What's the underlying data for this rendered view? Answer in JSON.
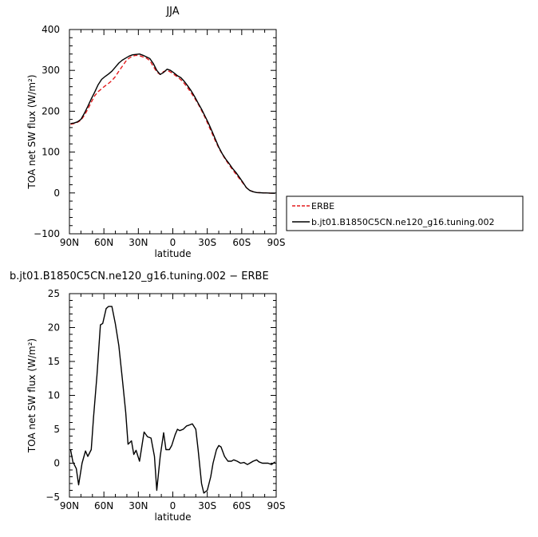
{
  "chart_data": [
    {
      "type": "line",
      "title": "JJA",
      "xlabel": "latitude",
      "ylabel": "TOA net SW flux (W/m²)",
      "xlim": [
        90,
        -90
      ],
      "ylim": [
        -100,
        400
      ],
      "x_ticks": [
        90,
        60,
        30,
        0,
        -30,
        -60,
        -90
      ],
      "x_tick_labels": [
        "90N",
        "60N",
        "30N",
        "0",
        "30S",
        "60S",
        "90S"
      ],
      "y_ticks": [
        -100,
        0,
        100,
        200,
        300,
        400
      ],
      "y_tick_labels": [
        "−100",
        "0",
        "100",
        "200",
        "300",
        "400"
      ],
      "legend_position": "right",
      "series": [
        {
          "name": "ERBE",
          "color": "#e41a1c",
          "dash": "dashed",
          "x": [
            89,
            86,
            83,
            80,
            77,
            74,
            71,
            68,
            65,
            62,
            59,
            56,
            53,
            50,
            47,
            44,
            41,
            38,
            35,
            32,
            29,
            26,
            23,
            20,
            17,
            14,
            11,
            8,
            5,
            2,
            -1,
            -4,
            -7,
            -10,
            -13,
            -16,
            -19,
            -22,
            -25,
            -28,
            -31,
            -34,
            -37,
            -40,
            -43,
            -46,
            -49,
            -52,
            -55,
            -58,
            -61,
            -64,
            -67,
            -70,
            -73,
            -76,
            -79,
            -82,
            -85,
            -89
          ],
          "y": [
            168,
            170,
            173,
            178,
            190,
            205,
            222,
            238,
            248,
            255,
            262,
            268,
            275,
            285,
            298,
            310,
            322,
            330,
            335,
            337,
            336,
            333,
            330,
            324,
            310,
            296,
            290,
            297,
            300,
            296,
            290,
            284,
            277,
            268,
            257,
            245,
            232,
            218,
            202,
            185,
            166,
            147,
            128,
            110,
            95,
            81,
            69,
            57,
            46,
            35,
            24,
            13,
            6,
            3,
            1,
            0.5,
            0,
            0,
            -0.5,
            -1
          ]
        },
        {
          "name": "b.jt01.B1850C5CN.ne120_g16.tuning.002",
          "color": "#000000",
          "dash": "solid",
          "x": [
            89,
            86,
            83,
            80,
            77,
            74,
            71,
            68,
            65,
            62,
            59,
            56,
            53,
            50,
            47,
            44,
            41,
            38,
            35,
            32,
            29,
            26,
            23,
            20,
            17,
            14,
            11,
            8,
            5,
            2,
            -1,
            -4,
            -7,
            -10,
            -13,
            -16,
            -19,
            -22,
            -25,
            -28,
            -31,
            -34,
            -37,
            -40,
            -43,
            -46,
            -49,
            -52,
            -55,
            -58,
            -61,
            -64,
            -67,
            -70,
            -73,
            -76,
            -79,
            -82,
            -85,
            -89
          ],
          "y": [
            170,
            171,
            174,
            180,
            195,
            212,
            230,
            247,
            265,
            278,
            285,
            291,
            298,
            308,
            318,
            325,
            330,
            335,
            338,
            339,
            340,
            337,
            333,
            329,
            317,
            300,
            290,
            295,
            303,
            300,
            294,
            287,
            282,
            273,
            262,
            250,
            236,
            220,
            205,
            188,
            171,
            152,
            132,
            112,
            96,
            83,
            72,
            60,
            50,
            38,
            26,
            13,
            6,
            3,
            1,
            0.5,
            0,
            0,
            -0.5,
            -1
          ]
        }
      ]
    },
    {
      "type": "line",
      "title": "b.jt01.B1850C5CN.ne120_g16.tuning.002 − ERBE",
      "xlabel": "latitude",
      "ylabel": "TOA net SW flux (W/m²)",
      "xlim": [
        90,
        -90
      ],
      "ylim": [
        -5,
        25
      ],
      "x_ticks": [
        90,
        60,
        30,
        0,
        -30,
        -60,
        -90
      ],
      "x_tick_labels": [
        "90N",
        "60N",
        "30N",
        "0",
        "30S",
        "60S",
        "90S"
      ],
      "y_ticks": [
        -5,
        0,
        5,
        10,
        15,
        20,
        25
      ],
      "y_tick_labels": [
        "−5",
        "0",
        "5",
        "10",
        "15",
        "20",
        "25"
      ],
      "series": [
        {
          "color": "#000000",
          "dash": "solid",
          "x": [
            89,
            87,
            84,
            82,
            79,
            76,
            74,
            71,
            69,
            66,
            63,
            61,
            58,
            56,
            53,
            50,
            47,
            44,
            41,
            39,
            36,
            34,
            32,
            29,
            27,
            25,
            22,
            19,
            16,
            14,
            11,
            8,
            6,
            3,
            1,
            -2,
            -4,
            -6,
            -9,
            -12,
            -14,
            -17,
            -20,
            -22,
            -25,
            -27,
            -30,
            -33,
            -35,
            -38,
            -40,
            -42,
            -45,
            -48,
            -51,
            -53,
            -56,
            -59,
            -62,
            -65,
            -67,
            -70,
            -73,
            -75,
            -78,
            -80,
            -83,
            -86,
            -89
          ],
          "y": [
            2.0,
            0.2,
            -0.8,
            -3.2,
            0.0,
            1.8,
            1.0,
            2.0,
            6.8,
            13.0,
            20.4,
            20.6,
            22.8,
            23.1,
            23.1,
            20.5,
            17.3,
            12.5,
            7.5,
            2.8,
            3.3,
            1.3,
            1.9,
            0.3,
            2.4,
            4.6,
            3.9,
            3.7,
            1.0,
            -4.0,
            1.0,
            4.5,
            2.0,
            2.0,
            2.6,
            4.2,
            5.0,
            4.8,
            5.0,
            5.5,
            5.6,
            5.8,
            5.0,
            2.0,
            -3.0,
            -4.4,
            -4.0,
            -2.0,
            0.0,
            2.0,
            2.6,
            2.4,
            1.0,
            0.3,
            0.3,
            0.5,
            0.3,
            0.0,
            0.1,
            -0.2,
            0.0,
            0.3,
            0.5,
            0.2,
            0.0,
            0.0,
            0.0,
            -0.2,
            0.2
          ]
        }
      ]
    }
  ]
}
